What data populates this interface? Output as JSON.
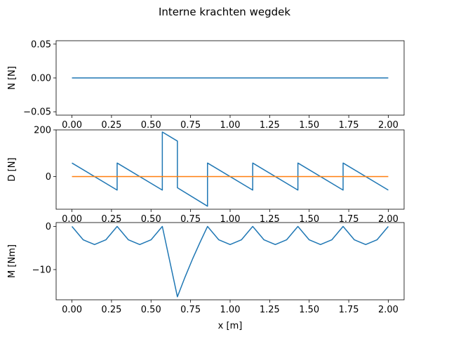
{
  "chart_data": {
    "type": "line",
    "title": "Interne krachten wegdek",
    "xlabel": "x [m]",
    "x_ticks": [
      0.0,
      0.25,
      0.5,
      0.75,
      1.0,
      1.25,
      1.5,
      1.75,
      2.0
    ],
    "x_tick_labels": [
      "0.00",
      "0.25",
      "0.50",
      "0.75",
      "1.00",
      "1.25",
      "1.50",
      "1.75",
      "2.00"
    ],
    "xlim": [
      -0.1,
      2.1
    ],
    "grid": false,
    "colors": {
      "blue": "#1f77b4",
      "orange": "#ff7f0e"
    },
    "subplots": [
      {
        "ylabel": "N [N]",
        "ylim": [
          -0.055,
          0.055
        ],
        "y_ticks": [
          -0.05,
          0.0,
          0.05
        ],
        "y_tick_labels": [
          "−0.05",
          "0.00",
          "0.05"
        ],
        "series": [
          {
            "color": "#1f77b4",
            "x": [
              0,
              2.0
            ],
            "y": [
              0,
              0
            ]
          }
        ]
      },
      {
        "ylabel": "D [N]",
        "ylim": [
          -140,
          200
        ],
        "y_ticks": [
          0,
          200
        ],
        "y_tick_labels": [
          "0",
          "200"
        ],
        "series": [
          {
            "color": "#1f77b4",
            "x": [
              0,
              0.2857,
              0.2857,
              0.5714,
              0.5714,
              0.6667,
              0.6667,
              0.8571,
              0.8571,
              1.1429,
              1.1429,
              1.4286,
              1.4286,
              1.7143,
              1.7143,
              2.0
            ],
            "y": [
              58,
              -58,
              58,
              -58,
              191,
              152,
              -48,
              -127,
              58,
              -58,
              58,
              -58,
              58,
              -58,
              58,
              -58
            ]
          },
          {
            "color": "#ff7f0e",
            "x": [
              0,
              2.0
            ],
            "y": [
              0,
              0
            ]
          }
        ]
      },
      {
        "ylabel": "M [Nm]",
        "ylim": [
          -17,
          0.9
        ],
        "y_ticks": [
          -10,
          0
        ],
        "y_tick_labels": [
          "−10",
          "0"
        ],
        "series": [
          {
            "color": "#1f77b4",
            "x": [
              0,
              0.0714,
              0.1429,
              0.2143,
              0.2857,
              0.3571,
              0.4286,
              0.5,
              0.5714,
              0.6667,
              0.7143,
              0.7619,
              0.8095,
              0.8571,
              0.9286,
              1.0,
              1.0714,
              1.1429,
              1.2143,
              1.2857,
              1.3571,
              1.4286,
              1.5,
              1.5714,
              1.6429,
              1.7143,
              1.7857,
              1.8571,
              1.9286,
              2.0
            ],
            "y": [
              0,
              -3.1,
              -4.2,
              -3.1,
              0,
              -3.1,
              -4.2,
              -3.1,
              0,
              -16.3,
              -11.8,
              -7.6,
              -3.7,
              0,
              -3.1,
              -4.2,
              -3.1,
              0,
              -3.1,
              -4.2,
              -3.1,
              0,
              -3.1,
              -4.2,
              -3.1,
              0,
              -3.1,
              -4.2,
              -3.1,
              0
            ]
          }
        ]
      }
    ]
  }
}
